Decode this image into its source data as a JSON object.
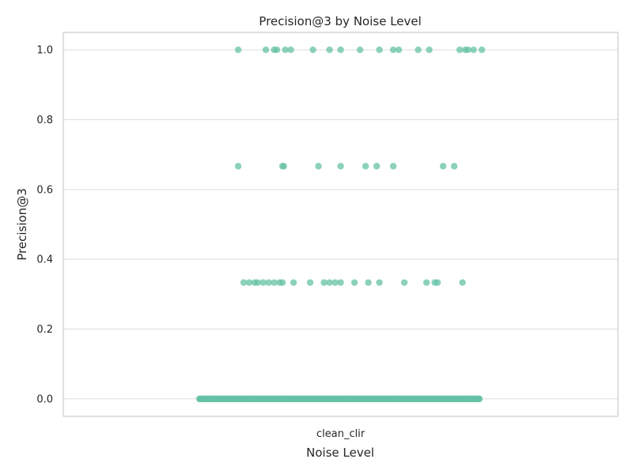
{
  "chart_data": {
    "type": "scatter",
    "title": "Precision@3 by Noise Level",
    "xlabel": "Noise Level",
    "ylabel": "Precision@3",
    "categories": [
      "clean_clir"
    ],
    "ylim": [
      -0.05,
      1.05
    ],
    "yticks": [
      0.0,
      0.2,
      0.4,
      0.6,
      0.8,
      1.0
    ],
    "ytick_labels": [
      "0.0",
      "0.2",
      "0.4",
      "0.6",
      "0.8",
      "1.0"
    ],
    "grid": true,
    "color": "#66c2a5",
    "series": [
      {
        "category": "clean_clir",
        "y_values": [
          1.0,
          0.6667,
          0.3333,
          0.0
        ],
        "jitter_offsets": {
          "1.0": [
            -0.37,
            -0.27,
            -0.24,
            -0.23,
            -0.2,
            -0.18,
            -0.1,
            -0.04,
            0.0,
            0.07,
            0.14,
            0.19,
            0.21,
            0.28,
            0.32,
            0.43,
            0.45,
            0.46,
            0.48,
            0.51
          ],
          "0.6667": [
            -0.37,
            -0.21,
            -0.205,
            -0.08,
            0.0,
            0.09,
            0.13,
            0.19,
            0.37,
            0.41
          ],
          "0.3333": [
            -0.35,
            -0.33,
            -0.31,
            -0.3,
            -0.28,
            -0.26,
            -0.24,
            -0.22,
            -0.21,
            -0.17,
            -0.11,
            -0.06,
            -0.04,
            -0.02,
            0.0,
            0.05,
            0.1,
            0.14,
            0.23,
            0.31,
            0.34,
            0.35,
            0.44
          ]
        },
        "zero_count": 400
      }
    ]
  }
}
